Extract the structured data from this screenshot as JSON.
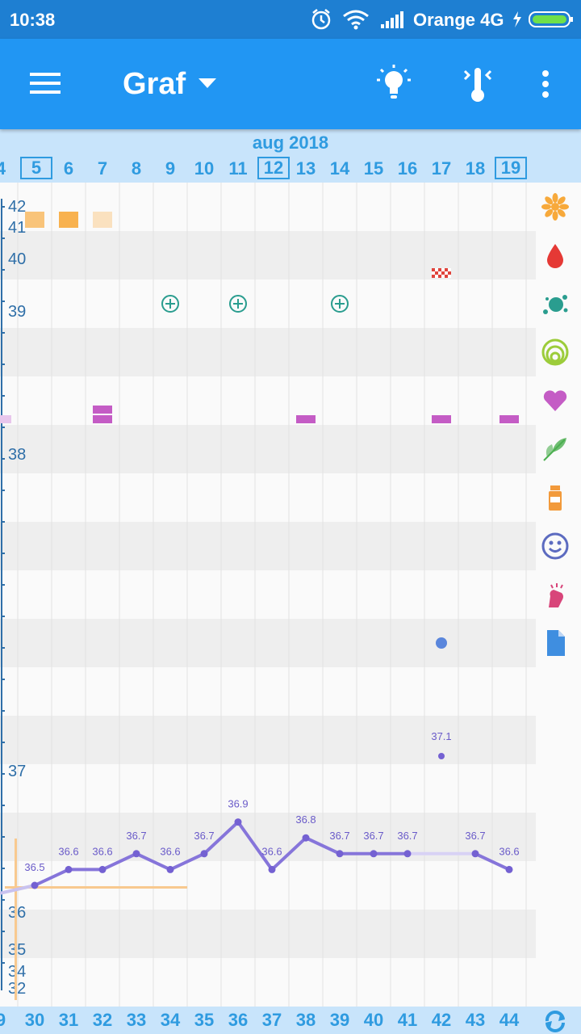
{
  "status_bar": {
    "time": "10:38",
    "carrier": "Orange 4G"
  },
  "app_bar": {
    "title": "Graf"
  },
  "header": {
    "month": "aug 2018",
    "days": [
      {
        "label": "4",
        "boxed": false
      },
      {
        "label": "5",
        "boxed": true
      },
      {
        "label": "6",
        "boxed": false
      },
      {
        "label": "7",
        "boxed": false
      },
      {
        "label": "8",
        "boxed": false
      },
      {
        "label": "9",
        "boxed": false
      },
      {
        "label": "10",
        "boxed": false
      },
      {
        "label": "11",
        "boxed": false
      },
      {
        "label": "12",
        "boxed": true
      },
      {
        "label": "13",
        "boxed": false
      },
      {
        "label": "14",
        "boxed": false
      },
      {
        "label": "15",
        "boxed": false
      },
      {
        "label": "16",
        "boxed": false
      },
      {
        "label": "17",
        "boxed": false
      },
      {
        "label": "18",
        "boxed": false
      },
      {
        "label": "19",
        "boxed": true
      }
    ]
  },
  "cycle_days": [
    "9",
    "30",
    "31",
    "32",
    "33",
    "34",
    "35",
    "36",
    "37",
    "38",
    "39",
    "40",
    "41",
    "42",
    "43",
    "44"
  ],
  "y_axis_labels": [
    "42",
    "41",
    "40",
    "39",
    "38",
    "37",
    "36",
    "35",
    "34",
    "32"
  ],
  "chart_data": {
    "type": "line",
    "series": [
      {
        "values": [
          {
            "day": "30",
            "value": "36.5"
          },
          {
            "day": "31",
            "value": "36.6"
          },
          {
            "day": "32",
            "value": "36.6"
          },
          {
            "day": "33",
            "value": "36.7"
          },
          {
            "day": "34",
            "value": "36.6"
          },
          {
            "day": "35",
            "value": "36.7"
          },
          {
            "day": "36",
            "value": "36.9"
          },
          {
            "day": "37",
            "value": "36.6"
          },
          {
            "day": "38",
            "value": "36.8"
          },
          {
            "day": "39",
            "value": "36.7"
          },
          {
            "day": "40",
            "value": "36.7"
          },
          {
            "day": "41",
            "value": "36.7"
          },
          {
            "day": "43",
            "value": "36.7"
          },
          {
            "day": "44",
            "value": "36.6"
          }
        ]
      }
    ],
    "outlier": {
      "day": "42",
      "value": "37.1"
    }
  },
  "side_icons": [
    {
      "name": "flower-icon",
      "color": "#f7a93b"
    },
    {
      "name": "blood-drop-icon",
      "color": "#e53935"
    },
    {
      "name": "splash-icon",
      "color": "#2a9d8f"
    },
    {
      "name": "rings-icon",
      "color": "#9ccc3a"
    },
    {
      "name": "heart-icon",
      "color": "#c45cc5"
    },
    {
      "name": "leaf-icon",
      "color": "#4caf50"
    },
    {
      "name": "medicine-bottle-icon",
      "color": "#f29a3b"
    },
    {
      "name": "smiley-icon",
      "color": "#5c6bc0"
    },
    {
      "name": "hand-alert-icon",
      "color": "#d8457a"
    },
    {
      "name": "document-icon",
      "color": "#3f8ee0"
    }
  ],
  "colors": {
    "accent": "#2196f3",
    "line": "#8675da"
  }
}
